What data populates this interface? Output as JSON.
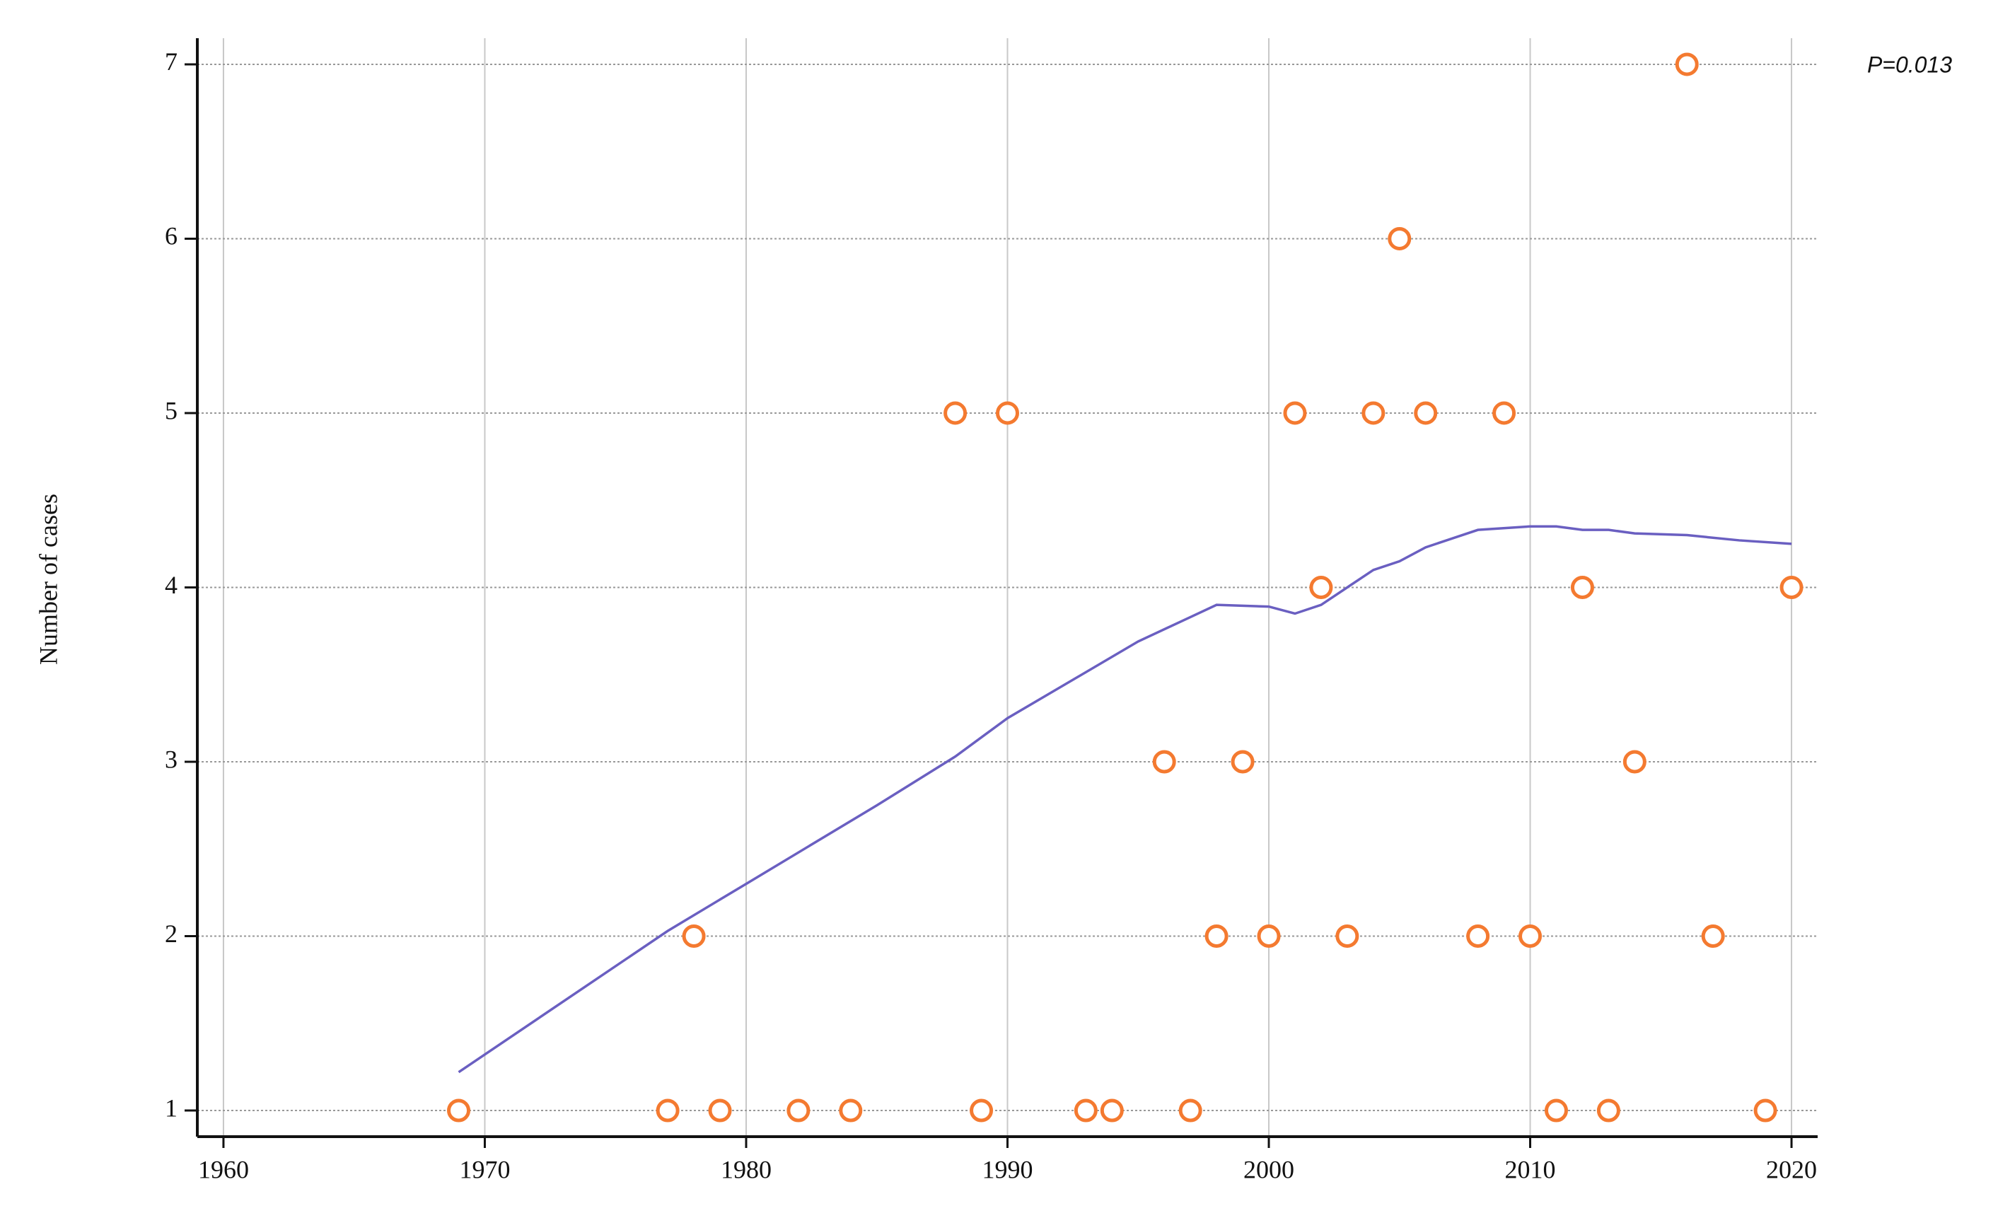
{
  "chart_data": {
    "type": "scatter",
    "y_label": "Number of cases",
    "annotation": "P=0.013",
    "xlim": [
      1959,
      2021
    ],
    "xticks": [
      1960,
      1970,
      1980,
      1990,
      2000,
      2010,
      2020
    ],
    "ylim": [
      0.85,
      7.15
    ],
    "yticks": [
      1,
      2,
      3,
      4,
      5,
      6,
      7
    ],
    "grid": true,
    "series": [
      {
        "type": "scatter",
        "color": "#f47a30",
        "x": [
          1969,
          1977,
          1979,
          1982,
          1984,
          1989,
          1993,
          1994,
          1997,
          2011,
          2013,
          2019,
          1978,
          1998,
          2000,
          2003,
          2008,
          2010,
          2017,
          1996,
          1999,
          2014,
          2002,
          2012,
          2020,
          1988,
          1990,
          2001,
          2004,
          2006,
          2009,
          2005,
          2016
        ],
        "values": [
          1,
          1,
          1,
          1,
          1,
          1,
          1,
          1,
          1,
          1,
          1,
          1,
          2,
          2,
          2,
          2,
          2,
          2,
          2,
          3,
          3,
          3,
          4,
          4,
          4,
          5,
          5,
          5,
          5,
          5,
          5,
          6,
          7
        ]
      },
      {
        "type": "line",
        "color": "#6a5fc1",
        "x": [
          1969,
          1977,
          1980,
          1985,
          1988,
          1990,
          1995,
          1997,
          1998,
          2000,
          2001,
          2002,
          2004,
          2005,
          2006,
          2008,
          2010,
          2011,
          2012,
          2013,
          2014,
          2016,
          2018,
          2020
        ],
        "values": [
          1.22,
          2.03,
          2.3,
          2.75,
          3.03,
          3.25,
          3.69,
          3.83,
          3.9,
          3.89,
          3.85,
          3.9,
          4.1,
          4.15,
          4.23,
          4.33,
          4.35,
          4.35,
          4.33,
          4.33,
          4.31,
          4.3,
          4.27,
          4.25
        ]
      }
    ]
  }
}
